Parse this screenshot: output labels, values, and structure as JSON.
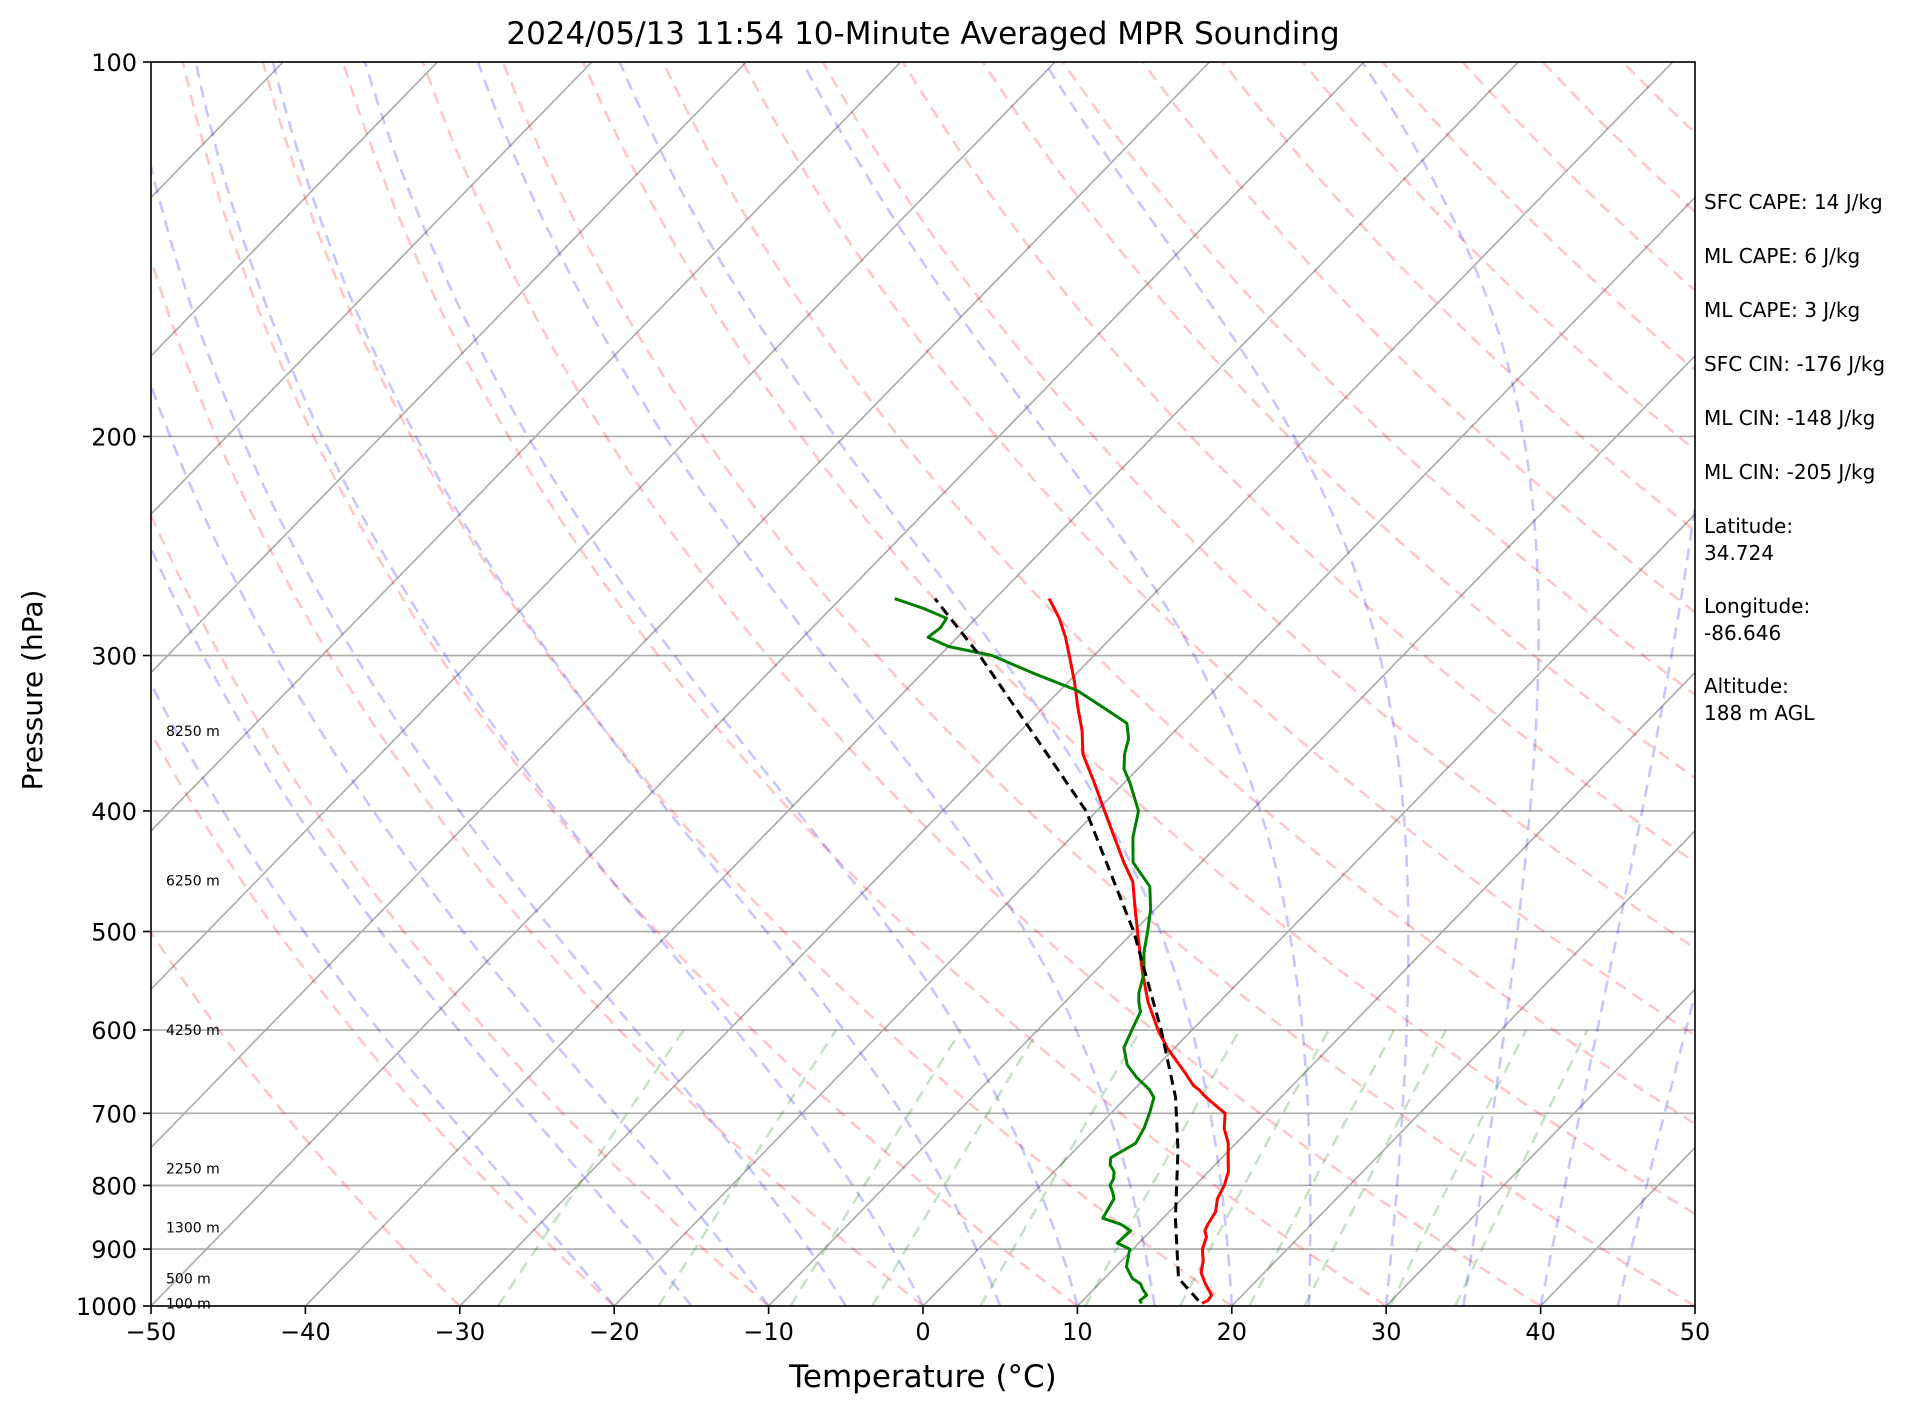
{
  "chart_data": {
    "type": "line",
    "title": "2024/05/13 11:54 10-Minute Averaged MPR Sounding",
    "xlabel": "Temperature (°C)",
    "ylabel": "Pressure (hPa)",
    "xlim": [
      -50,
      50
    ],
    "ylim": [
      1000,
      100
    ],
    "y_scale": "log",
    "skew": "skew-T log-p",
    "grid": true,
    "x_ticks": [
      "−50",
      "−40",
      "−30",
      "−20",
      "−10",
      "0",
      "10",
      "20",
      "30",
      "40",
      "50"
    ],
    "x_tick_values": [
      -50,
      -40,
      -30,
      -20,
      -10,
      0,
      10,
      20,
      30,
      40,
      50
    ],
    "y_ticks": [
      "1000",
      "900",
      "800",
      "700",
      "600",
      "500",
      "400",
      "300",
      "200",
      "100"
    ],
    "y_tick_values": [
      1000,
      900,
      800,
      700,
      600,
      500,
      400,
      300,
      200,
      100
    ],
    "height_labels": [
      {
        "text": "100 m",
        "p": 995
      },
      {
        "text": "500 m",
        "p": 950
      },
      {
        "text": "1300 m",
        "p": 865
      },
      {
        "text": "2250 m",
        "p": 775
      },
      {
        "text": "4250 m",
        "p": 600
      },
      {
        "text": "6250 m",
        "p": 455
      },
      {
        "text": "8250 m",
        "p": 345
      }
    ],
    "annotations": [
      "SFC CAPE: 14 J/kg",
      "ML CAPE: 6 J/kg",
      "ML CAPE: 3 J/kg",
      "SFC CIN: -176 J/kg",
      "ML CIN: -148 J/kg",
      "ML CIN: -205 J/kg",
      "Latitude:\n34.724",
      "Longitude:\n-86.646",
      "Altitude:\n188 m AGL"
    ],
    "series": [
      {
        "role": "temperature",
        "color": "#ff0000",
        "style": "solid",
        "p": [
          995,
          990,
          980,
          960,
          940,
          920,
          900,
          880,
          870,
          860,
          840,
          820,
          800,
          780,
          760,
          740,
          720,
          700,
          690,
          680,
          670,
          665,
          650,
          620,
          600,
          570,
          540,
          510,
          480,
          456,
          440,
          420,
          400,
          380,
          360,
          345,
          330,
          315,
          300,
          290,
          280,
          270
        ],
        "t": [
          17.9,
          18.1,
          18.0,
          16.9,
          15.9,
          15.3,
          14.5,
          14.0,
          13.5,
          13.3,
          13.0,
          12.3,
          11.9,
          11.3,
          10.4,
          9.5,
          8.3,
          7.4,
          6.3,
          5.2,
          4.2,
          3.6,
          2.3,
          -0.5,
          -2.2,
          -4.6,
          -6.8,
          -9.0,
          -11.3,
          -13.2,
          -15.0,
          -17.2,
          -19.5,
          -21.9,
          -24.5,
          -26.0,
          -27.8,
          -29.6,
          -31.6,
          -33.0,
          -34.6,
          -36.5
        ]
      },
      {
        "role": "dewpoint",
        "color": "#008000",
        "style": "solid",
        "p": [
          995,
          990,
          980,
          970,
          960,
          950,
          930,
          920,
          900,
          890,
          870,
          860,
          850,
          820,
          810,
          800,
          790,
          780,
          770,
          760,
          740,
          720,
          700,
          680,
          670,
          655,
          640,
          620,
          600,
          580,
          570,
          560,
          540,
          520,
          500,
          480,
          460,
          440,
          420,
          400,
          380,
          370,
          360,
          350,
          340,
          330,
          320,
          310,
          300,
          295,
          290,
          285,
          280,
          275,
          270
        ],
        "t": [
          14.0,
          13.7,
          13.8,
          13.2,
          12.7,
          11.8,
          10.7,
          10.4,
          9.8,
          8.6,
          8.7,
          7.7,
          6.1,
          5.6,
          5.1,
          4.5,
          4.3,
          3.9,
          3.2,
          2.8,
          3.5,
          3.1,
          2.5,
          1.8,
          1.0,
          -0.6,
          -2.0,
          -3.3,
          -3.9,
          -4.5,
          -5.2,
          -5.8,
          -6.7,
          -8.0,
          -9.1,
          -10.3,
          -11.8,
          -14.4,
          -16.0,
          -17.3,
          -19.6,
          -20.9,
          -21.8,
          -22.5,
          -23.6,
          -26.2,
          -28.9,
          -32.8,
          -36.6,
          -40.0,
          -41.9,
          -41.7,
          -41.9,
          -44.0,
          -46.5
        ]
      },
      {
        "role": "parcel",
        "color": "#000000",
        "style": "dashed",
        "p": [
          990,
          950,
          850,
          750,
          680,
          600,
          500,
          400,
          300,
          270
        ],
        "t": [
          17.5,
          14.8,
          10.8,
          6.7,
          3.2,
          -2.0,
          -10.0,
          -20.7,
          -37.4,
          -43.9
        ]
      }
    ]
  }
}
